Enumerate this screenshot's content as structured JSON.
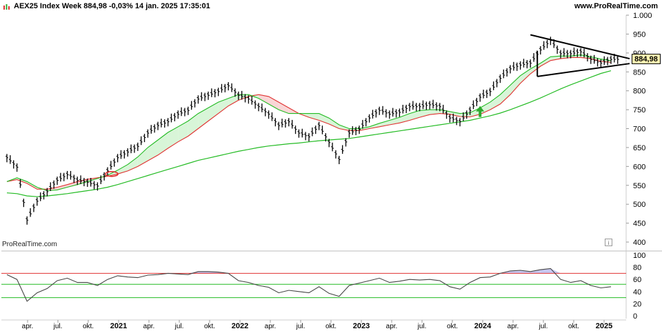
{
  "header": {
    "title": "AEX25 Index Week 884,98 -0,03% 14 jan. 2025 17:35:01",
    "brand": "www.ProRealTime.com",
    "watermark": "ProRealTime.com",
    "info": "i",
    "icon": "chart-icon"
  },
  "colors": {
    "price_bar": "#000000",
    "ma_short": "#e03030",
    "ma_mid": "#22bb22",
    "ma_long": "#22bb22",
    "ribbon_green": "#d8f5d8",
    "ribbon_red": "#f9d6d6",
    "rsi_line": "#444444",
    "rsi_upper": "#e03030",
    "rsi_mid": "#22bb22",
    "rsi_lower": "#22bb22",
    "rsi_overbought_fill": "#c7c7f0",
    "trendline": "#000000",
    "arrow": "#2ea82e",
    "price_tag_bg": "#fff5b0"
  },
  "chart_data": [
    {
      "type": "line",
      "title": "AEX25 Index Week",
      "last_value": "884,98",
      "ylim": [
        380,
        1000
      ],
      "y_ticks": [
        "1.000",
        "950",
        "900",
        "850",
        "800",
        "750",
        "700",
        "650",
        "600",
        "550",
        "500",
        "450",
        "400"
      ],
      "x_ticks": [
        "apr.",
        "jul.",
        "okt.",
        "2021",
        "apr.",
        "jul.",
        "okt.",
        "2022",
        "apr.",
        "jul.",
        "okt.",
        "2023",
        "apr.",
        "jul.",
        "okt.",
        "2024",
        "apr.",
        "jul.",
        "okt.",
        "2025"
      ],
      "series": [
        {
          "x": [
            "2020-01",
            "2020-02",
            "2020-03",
            "2020-04",
            "2020-05",
            "2020-06",
            "2020-07",
            "2020-08",
            "2020-09",
            "2020-10",
            "2020-11",
            "2020-12",
            "2021-01",
            "2021-02",
            "2021-03",
            "2021-04",
            "2021-05",
            "2021-06",
            "2021-07",
            "2021-08",
            "2021-09",
            "2021-10",
            "2021-11",
            "2021-12",
            "2022-01",
            "2022-02",
            "2022-03",
            "2022-04",
            "2022-05",
            "2022-06",
            "2022-07",
            "2022-08",
            "2022-09",
            "2022-10",
            "2022-11",
            "2022-12",
            "2023-01",
            "2023-02",
            "2023-03",
            "2023-04",
            "2023-05",
            "2023-06",
            "2023-07",
            "2023-08",
            "2023-09",
            "2023-10",
            "2023-11",
            "2023-12",
            "2024-01",
            "2024-02",
            "2024-03",
            "2024-04",
            "2024-05",
            "2024-06",
            "2024-07",
            "2024-08",
            "2024-09",
            "2024-10",
            "2024-11",
            "2024-12",
            "2025-01"
          ],
          "values": [
            625,
            600,
            460,
            510,
            535,
            565,
            580,
            565,
            560,
            550,
            590,
            625,
            640,
            655,
            690,
            710,
            720,
            740,
            750,
            780,
            790,
            800,
            815,
            790,
            780,
            760,
            740,
            710,
            720,
            690,
            680,
            710,
            665,
            620,
            690,
            700,
            730,
            750,
            740,
            745,
            760,
            760,
            765,
            760,
            730,
            720,
            750,
            785,
            800,
            835,
            860,
            870,
            875,
            910,
            935,
            900,
            900,
            905,
            885,
            875,
            885
          ]
        },
        {
          "values": [
            560,
            565,
            555,
            540,
            540,
            545,
            552,
            560,
            566,
            570,
            574,
            580,
            588,
            600,
            615,
            630,
            648,
            665,
            680,
            700,
            720,
            740,
            760,
            775,
            785,
            790,
            785,
            770,
            755,
            740,
            730,
            722,
            712,
            700,
            695,
            695,
            700,
            705,
            710,
            715,
            722,
            730,
            737,
            740,
            738,
            732,
            731,
            738,
            750,
            765,
            790,
            820,
            845,
            865,
            880,
            885,
            888,
            888,
            885,
            878,
            875
          ]
        },
        {
          "values": [
            560,
            570,
            560,
            545,
            536,
            538,
            545,
            552,
            560,
            568,
            577,
            590,
            605,
            625,
            650,
            670,
            690,
            705,
            720,
            740,
            755,
            770,
            780,
            790,
            790,
            780,
            765,
            750,
            740,
            740,
            740,
            740,
            728,
            710,
            700,
            700,
            705,
            714,
            722,
            730,
            740,
            748,
            750,
            750,
            745,
            740,
            742,
            755,
            770,
            790,
            815,
            840,
            858,
            873,
            890,
            892,
            892,
            895,
            890,
            884,
            880
          ]
        },
        {
          "values": [
            530,
            528,
            522,
            520,
            522,
            525,
            528,
            532,
            536,
            540,
            545,
            552,
            560,
            568,
            576,
            584,
            592,
            600,
            608,
            616,
            622,
            628,
            634,
            640,
            645,
            650,
            654,
            657,
            660,
            662,
            665,
            668,
            670,
            672,
            674,
            678,
            682,
            686,
            690,
            694,
            698,
            702,
            706,
            710,
            714,
            718,
            722,
            728,
            734,
            741,
            750,
            760,
            770,
            781,
            793,
            805,
            816,
            826,
            836,
            846,
            853
          ]
        }
      ]
    },
    {
      "type": "line",
      "title": "RSI",
      "ylim": [
        0,
        100
      ],
      "y_ticks": [
        "100",
        "80",
        "60",
        "40",
        "20",
        "0"
      ],
      "levels": [
        70,
        52,
        30
      ],
      "series": [
        {
          "values": [
            68,
            60,
            24,
            38,
            45,
            58,
            62,
            55,
            55,
            50,
            60,
            66,
            64,
            63,
            67,
            68,
            70,
            69,
            68,
            73,
            73,
            72,
            70,
            58,
            55,
            50,
            47,
            38,
            42,
            40,
            38,
            48,
            37,
            32,
            50,
            54,
            58,
            62,
            55,
            57,
            60,
            59,
            60,
            58,
            48,
            44,
            55,
            63,
            64,
            70,
            74,
            75,
            73,
            76,
            78,
            60,
            55,
            58,
            50,
            46,
            48
          ]
        }
      ]
    }
  ]
}
